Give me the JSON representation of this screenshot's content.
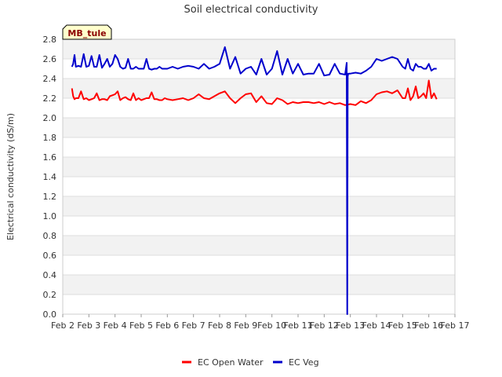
{
  "chart_data": {
    "type": "line",
    "title": "Soil electrical conductivity",
    "xlabel": "",
    "ylabel": "Electrical conductivity (dS/m)",
    "site_label": "MB_tule",
    "x_unit": "days since Feb 2",
    "xlim": [
      0,
      15
    ],
    "ylim": [
      0,
      2.8
    ],
    "xticks": [
      {
        "value": 0,
        "label": "Feb 2"
      },
      {
        "value": 1,
        "label": "Feb 3"
      },
      {
        "value": 2,
        "label": "Feb 4"
      },
      {
        "value": 3,
        "label": "Feb 5"
      },
      {
        "value": 4,
        "label": "Feb 6"
      },
      {
        "value": 5,
        "label": "Feb 7"
      },
      {
        "value": 6,
        "label": "Feb 8"
      },
      {
        "value": 7,
        "label": "Feb 9"
      },
      {
        "value": 8,
        "label": "Feb 10"
      },
      {
        "value": 9,
        "label": "Feb 11"
      },
      {
        "value": 10,
        "label": "Feb 12"
      },
      {
        "value": 11,
        "label": "Feb 13"
      },
      {
        "value": 12,
        "label": "Feb 14"
      },
      {
        "value": 13,
        "label": "Feb 15"
      },
      {
        "value": 14,
        "label": "Feb 16"
      },
      {
        "value": 15,
        "label": "Feb 17"
      }
    ],
    "yticks": [
      "0.0",
      "0.2",
      "0.4",
      "0.6",
      "0.8",
      "1.0",
      "1.2",
      "1.4",
      "1.6",
      "1.8",
      "2.0",
      "2.2",
      "2.4",
      "2.6",
      "2.8"
    ],
    "grid": true,
    "legend": "bottom-center",
    "series": [
      {
        "name": "EC Open Water",
        "color": "#ff0000",
        "x": [
          0.35,
          0.4,
          0.45,
          0.5,
          0.6,
          0.7,
          0.8,
          0.9,
          1.0,
          1.1,
          1.2,
          1.3,
          1.4,
          1.5,
          1.6,
          1.7,
          1.8,
          1.9,
          2.0,
          2.1,
          2.2,
          2.3,
          2.4,
          2.5,
          2.6,
          2.7,
          2.8,
          2.9,
          3.0,
          3.1,
          3.2,
          3.3,
          3.4,
          3.5,
          3.6,
          3.7,
          3.8,
          3.9,
          4.0,
          4.2,
          4.4,
          4.6,
          4.8,
          5.0,
          5.2,
          5.4,
          5.6,
          5.8,
          6.0,
          6.2,
          6.4,
          6.6,
          6.8,
          7.0,
          7.2,
          7.4,
          7.6,
          7.8,
          8.0,
          8.2,
          8.4,
          8.6,
          8.8,
          9.0,
          9.2,
          9.4,
          9.6,
          9.8,
          10.0,
          10.2,
          10.4,
          10.6,
          10.8,
          11.0,
          11.2,
          11.4,
          11.6,
          11.8,
          12.0,
          12.2,
          12.4,
          12.6,
          12.8,
          13.0,
          13.1,
          13.2,
          13.3,
          13.4,
          13.5,
          13.6,
          13.7,
          13.8,
          13.9,
          14.0,
          14.1,
          14.2,
          14.3
        ],
        "values": [
          2.3,
          2.22,
          2.19,
          2.2,
          2.2,
          2.27,
          2.19,
          2.2,
          2.18,
          2.19,
          2.2,
          2.25,
          2.18,
          2.19,
          2.19,
          2.18,
          2.22,
          2.23,
          2.24,
          2.27,
          2.18,
          2.2,
          2.21,
          2.19,
          2.18,
          2.25,
          2.18,
          2.2,
          2.18,
          2.19,
          2.2,
          2.2,
          2.26,
          2.19,
          2.19,
          2.18,
          2.18,
          2.2,
          2.19,
          2.18,
          2.19,
          2.2,
          2.18,
          2.2,
          2.24,
          2.2,
          2.19,
          2.22,
          2.25,
          2.27,
          2.2,
          2.15,
          2.2,
          2.24,
          2.25,
          2.16,
          2.22,
          2.15,
          2.14,
          2.2,
          2.18,
          2.14,
          2.16,
          2.15,
          2.16,
          2.16,
          2.15,
          2.16,
          2.14,
          2.16,
          2.14,
          2.15,
          2.13,
          2.14,
          2.13,
          2.17,
          2.15,
          2.18,
          2.24,
          2.26,
          2.27,
          2.25,
          2.28,
          2.2,
          2.2,
          2.3,
          2.18,
          2.22,
          2.32,
          2.2,
          2.22,
          2.25,
          2.2,
          2.38,
          2.2,
          2.25,
          2.19
        ]
      },
      {
        "name": "EC Veg",
        "color": "#0000cc",
        "x": [
          0.35,
          0.4,
          0.45,
          0.5,
          0.6,
          0.7,
          0.8,
          0.9,
          1.0,
          1.1,
          1.2,
          1.3,
          1.4,
          1.5,
          1.6,
          1.7,
          1.8,
          1.9,
          2.0,
          2.1,
          2.2,
          2.3,
          2.4,
          2.5,
          2.6,
          2.7,
          2.8,
          2.9,
          3.0,
          3.1,
          3.2,
          3.3,
          3.4,
          3.5,
          3.6,
          3.7,
          3.8,
          3.9,
          4.0,
          4.2,
          4.4,
          4.6,
          4.8,
          5.0,
          5.2,
          5.4,
          5.6,
          5.8,
          6.0,
          6.2,
          6.4,
          6.6,
          6.8,
          7.0,
          7.2,
          7.4,
          7.6,
          7.8,
          8.0,
          8.2,
          8.4,
          8.6,
          8.8,
          9.0,
          9.2,
          9.4,
          9.6,
          9.8,
          10.0,
          10.2,
          10.4,
          10.6,
          10.8,
          10.86,
          10.88,
          10.9,
          10.92,
          11.0,
          11.2,
          11.4,
          11.6,
          11.8,
          12.0,
          12.2,
          12.4,
          12.6,
          12.8,
          13.0,
          13.1,
          13.2,
          13.3,
          13.4,
          13.5,
          13.6,
          13.7,
          13.8,
          13.9,
          14.0,
          14.1,
          14.2,
          14.3
        ],
        "values": [
          2.52,
          2.55,
          2.64,
          2.52,
          2.53,
          2.52,
          2.65,
          2.52,
          2.53,
          2.63,
          2.52,
          2.52,
          2.64,
          2.51,
          2.55,
          2.6,
          2.52,
          2.55,
          2.64,
          2.6,
          2.52,
          2.5,
          2.51,
          2.6,
          2.5,
          2.5,
          2.52,
          2.5,
          2.5,
          2.5,
          2.6,
          2.5,
          2.49,
          2.5,
          2.5,
          2.52,
          2.5,
          2.5,
          2.5,
          2.52,
          2.5,
          2.52,
          2.53,
          2.52,
          2.5,
          2.55,
          2.5,
          2.52,
          2.55,
          2.72,
          2.5,
          2.62,
          2.45,
          2.5,
          2.52,
          2.44,
          2.6,
          2.44,
          2.5,
          2.68,
          2.44,
          2.6,
          2.45,
          2.55,
          2.44,
          2.45,
          2.45,
          2.55,
          2.43,
          2.44,
          2.55,
          2.45,
          2.44,
          2.56,
          0.0,
          2.42,
          2.45,
          2.45,
          2.46,
          2.45,
          2.48,
          2.52,
          2.6,
          2.58,
          2.6,
          2.62,
          2.6,
          2.52,
          2.5,
          2.6,
          2.5,
          2.48,
          2.55,
          2.52,
          2.52,
          2.5,
          2.5,
          2.55,
          2.48,
          2.5,
          2.5
        ]
      }
    ]
  }
}
